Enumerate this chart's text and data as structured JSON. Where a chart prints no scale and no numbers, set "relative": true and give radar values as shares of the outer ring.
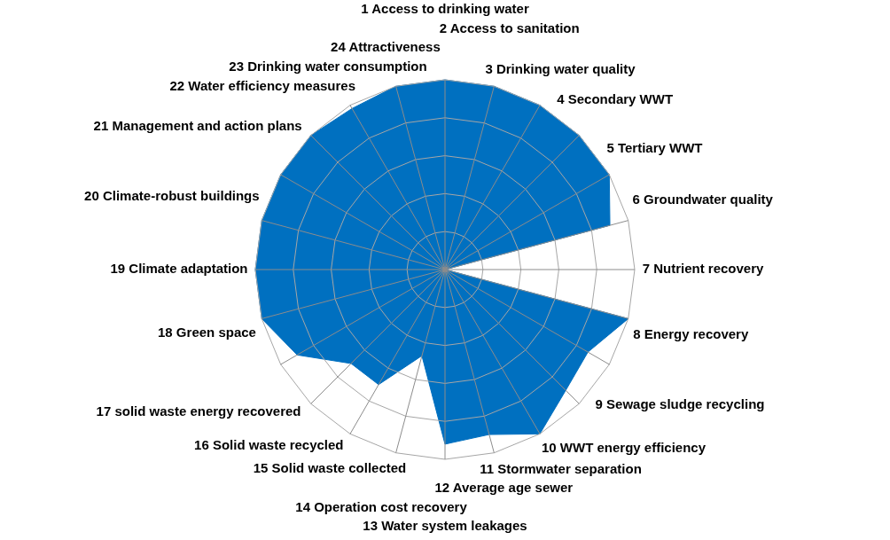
{
  "chart_data": {
    "type": "radar",
    "relative": true,
    "categories": [
      "1 Access to drinking water",
      "2 Access to sanitation",
      "3 Drinking water quality",
      "4 Secondary WWT",
      "5 Tertiary WWT",
      "6 Groundwater quality",
      "7 Nutrient recovery",
      "8 Energy recovery",
      "9 Sewage sludge recycling",
      "10 WWT energy efficiency",
      "11 Stormwater separation",
      "12 Average age sewer",
      "13 Water system leakages",
      "14 Operation cost recovery",
      "15 Solid waste collected",
      "16 Solid waste recycled",
      "17 solid waste energy recovered",
      "18 Green space",
      "19 Climate adaptation",
      "20 Climate-robust buildings",
      "21 Management and action plans",
      "22 Water efficiency measures",
      "23 Drinking water consumption",
      "24 Attractiveness"
    ],
    "series": [
      {
        "color": "#0070c0",
        "values": [
          1,
          1,
          1,
          1,
          1,
          0.9,
          0,
          1,
          0.87,
          0.9,
          1,
          0.9,
          0.92,
          0.47,
          0.7,
          0.7,
          0.9,
          1,
          1,
          1,
          1,
          1,
          0.98,
          1
        ]
      }
    ],
    "legend": false
  }
}
